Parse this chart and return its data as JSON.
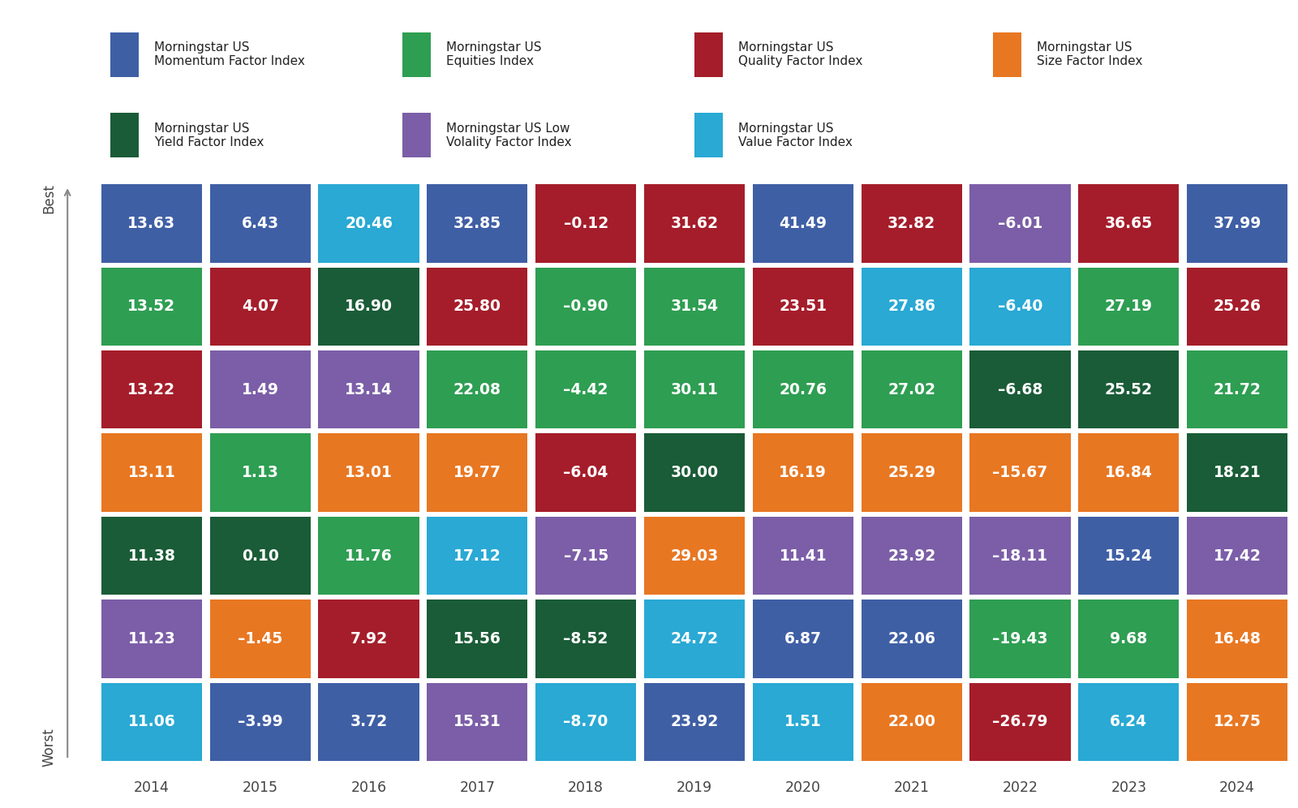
{
  "years": [
    2014,
    2015,
    2016,
    2017,
    2018,
    2019,
    2020,
    2021,
    2022,
    2023,
    2024
  ],
  "grid": [
    [
      "13.63",
      "6.43",
      "20.46",
      "32.85",
      "–0.12",
      "31.62",
      "41.49",
      "32.82",
      "–6.01",
      "36.65",
      "37.99"
    ],
    [
      "13.52",
      "4.07",
      "16.90",
      "25.80",
      "–0.90",
      "31.54",
      "23.51",
      "27.86",
      "–6.40",
      "27.19",
      "25.26"
    ],
    [
      "13.22",
      "1.49",
      "13.14",
      "22.08",
      "–4.42",
      "30.11",
      "20.76",
      "27.02",
      "–6.68",
      "25.52",
      "21.72"
    ],
    [
      "13.11",
      "1.13",
      "13.01",
      "19.77",
      "–6.04",
      "30.00",
      "16.19",
      "25.29",
      "–15.67",
      "16.84",
      "18.21"
    ],
    [
      "11.38",
      "0.10",
      "11.76",
      "17.12",
      "–7.15",
      "29.03",
      "11.41",
      "23.92",
      "–18.11",
      "15.24",
      "17.42"
    ],
    [
      "11.23",
      "–1.45",
      "7.92",
      "15.56",
      "–8.52",
      "24.72",
      "6.87",
      "22.06",
      "–19.43",
      "9.68",
      "16.48"
    ],
    [
      "11.06",
      "–3.99",
      "3.72",
      "15.31",
      "–8.70",
      "23.92",
      "1.51",
      "22.00",
      "–26.79",
      "6.24",
      "12.75"
    ]
  ],
  "colors": [
    [
      "#3f5fa5",
      "#3f5fa5",
      "#29a9d4",
      "#3f5fa5",
      "#a51d2a",
      "#a51d2a",
      "#3f5fa5",
      "#a51d2a",
      "#7b5ea7",
      "#a51d2a",
      "#3f5fa5"
    ],
    [
      "#2e9e52",
      "#a51d2a",
      "#1a5c37",
      "#a51d2a",
      "#2e9e52",
      "#2e9e52",
      "#a51d2a",
      "#29a9d4",
      "#29a9d4",
      "#2e9e52",
      "#a51d2a"
    ],
    [
      "#a51d2a",
      "#7b5ea7",
      "#7b5ea7",
      "#2e9e52",
      "#2e9e52",
      "#2e9e52",
      "#2e9e52",
      "#2e9e52",
      "#1a5c37",
      "#1a5c37",
      "#2e9e52"
    ],
    [
      "#e87722",
      "#2e9e52",
      "#e87722",
      "#e87722",
      "#a51d2a",
      "#1a5c37",
      "#e87722",
      "#e87722",
      "#e87722",
      "#e87722",
      "#1a5c37"
    ],
    [
      "#1a5c37",
      "#1a5c37",
      "#2e9e52",
      "#29a9d4",
      "#7b5ea7",
      "#e87722",
      "#7b5ea7",
      "#7b5ea7",
      "#7b5ea7",
      "#3f5fa5",
      "#7b5ea7"
    ],
    [
      "#7b5ea7",
      "#e87722",
      "#a51d2a",
      "#1a5c37",
      "#1a5c37",
      "#29a9d4",
      "#3f5fa5",
      "#3f5fa5",
      "#2e9e52",
      "#2e9e52",
      "#e87722"
    ],
    [
      "#29a9d4",
      "#3f5fa5",
      "#3f5fa5",
      "#7b5ea7",
      "#29a9d4",
      "#3f5fa5",
      "#29a9d4",
      "#e87722",
      "#a51d2a",
      "#29a9d4",
      "#e87722"
    ]
  ],
  "legend_row1": [
    {
      "label": "Morningstar US\nMomentum Factor Index",
      "color": "#3f5fa5"
    },
    {
      "label": "Morningstar US\nEquities Index",
      "color": "#2e9e52"
    },
    {
      "label": "Morningstar US\nQuality Factor Index",
      "color": "#a51d2a"
    },
    {
      "label": "Morningstar US\nSize Factor Index",
      "color": "#e87722"
    }
  ],
  "legend_row2": [
    {
      "label": "Morningstar US\nYield Factor Index",
      "color": "#1a5c37"
    },
    {
      "label": "Morningstar US Low\nVolality Factor Index",
      "color": "#7b5ea7"
    },
    {
      "label": "Morningstar US\nValue Factor Index",
      "color": "#29a9d4"
    }
  ]
}
